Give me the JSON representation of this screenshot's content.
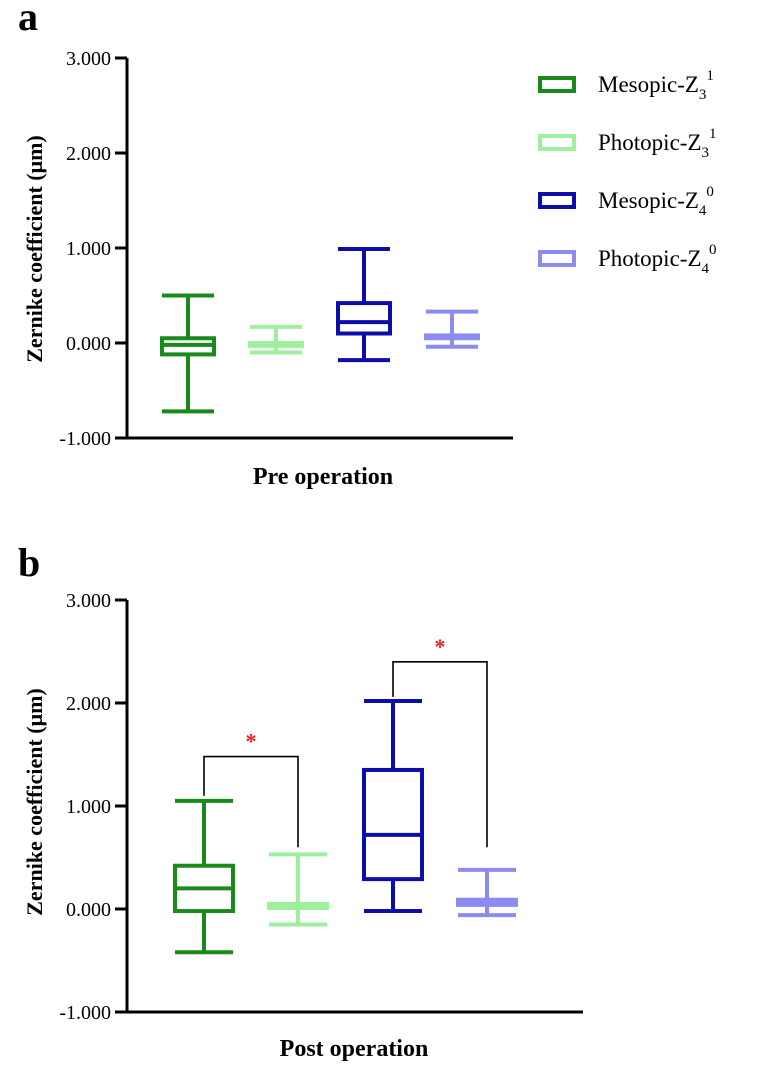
{
  "chart_data": [
    {
      "type": "box",
      "panel_label": "a",
      "xlabel": "Pre operation",
      "ylabel": "Zernike coefficient (μm)",
      "ylim": [
        -1,
        3
      ],
      "yticks": [
        -1,
        0,
        1,
        2,
        3
      ],
      "ytick_labels": [
        "-1.000",
        "0.000",
        "1.000",
        "2.000",
        "3.000"
      ],
      "grid": false,
      "legend_position": "top-right",
      "series": [
        {
          "name": "Mesopic-Z31",
          "color": "#1a8a1a",
          "min": -0.72,
          "q1": -0.12,
          "median": -0.02,
          "q3": 0.05,
          "max": 0.5
        },
        {
          "name": "Photopic-Z31",
          "color": "#9ef09e",
          "min": -0.1,
          "q1": -0.03,
          "median": -0.01,
          "q3": 0.0,
          "max": 0.17
        },
        {
          "name": "Mesopic-Z40",
          "color": "#0d0daa",
          "min": -0.18,
          "q1": 0.1,
          "median": 0.22,
          "q3": 0.42,
          "max": 0.99
        },
        {
          "name": "Photopic-Z40",
          "color": "#8c8cf0",
          "min": -0.04,
          "q1": 0.05,
          "median": 0.07,
          "q3": 0.08,
          "max": 0.33
        }
      ],
      "significance": []
    },
    {
      "type": "box",
      "panel_label": "b",
      "xlabel": "Post operation",
      "ylabel": "Zernike coefficient (μm)",
      "ylim": [
        -1,
        3
      ],
      "yticks": [
        -1,
        0,
        1,
        2,
        3
      ],
      "ytick_labels": [
        "-1.000",
        "0.000",
        "1.000",
        "2.000",
        "3.000"
      ],
      "grid": false,
      "series": [
        {
          "name": "Mesopic-Z31",
          "color": "#1a8a1a",
          "min": -0.42,
          "q1": -0.02,
          "median": 0.2,
          "q3": 0.42,
          "max": 1.05
        },
        {
          "name": "Photopic-Z31",
          "color": "#9ef09e",
          "min": -0.15,
          "q1": 0.01,
          "median": 0.03,
          "q3": 0.05,
          "max": 0.53
        },
        {
          "name": "Mesopic-Z40",
          "color": "#0d0daa",
          "min": -0.02,
          "q1": 0.29,
          "median": 0.72,
          "q3": 1.35,
          "max": 2.02
        },
        {
          "name": "Photopic-Z40",
          "color": "#8c8cf0",
          "min": -0.06,
          "q1": 0.04,
          "median": 0.06,
          "q3": 0.09,
          "max": 0.38
        }
      ],
      "significance": [
        {
          "from": 0,
          "to": 1,
          "y_start": 1.1,
          "y_bar": 1.48,
          "y_end": 0.6,
          "label": "*"
        },
        {
          "from": 2,
          "to": 3,
          "y_start": 2.06,
          "y_bar": 2.4,
          "y_end": 0.6,
          "label": "*"
        }
      ]
    }
  ],
  "legend": {
    "items": [
      {
        "base": "Mesopic-Z",
        "sub": "3",
        "sup": "1",
        "color": "#1a8a1a"
      },
      {
        "base": "Photopic-Z",
        "sub": "3",
        "sup": "1",
        "color": "#9ef09e"
      },
      {
        "base": "Mesopic-Z",
        "sub": "4",
        "sup": "0",
        "color": "#0d0daa"
      },
      {
        "base": "Photopic-Z",
        "sub": "4",
        "sup": "0",
        "color": "#8c8cf0"
      }
    ]
  },
  "colors": {
    "axis": "#000000",
    "significance": "#e02020"
  }
}
